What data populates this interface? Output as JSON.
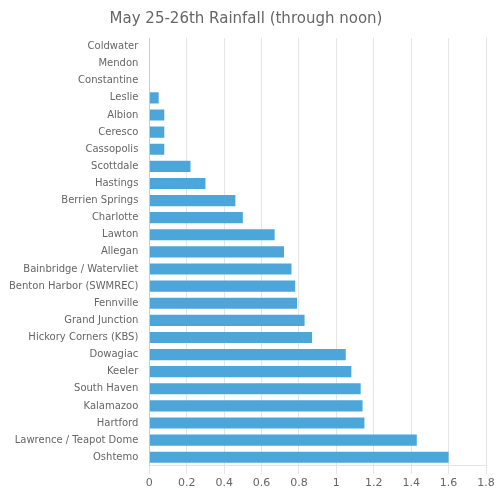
{
  "chart_data": {
    "type": "bar",
    "orientation": "horizontal",
    "title": "May 25-26th Rainfall (through noon)",
    "categories": [
      "Coldwater",
      "Mendon",
      "Constantine",
      "Leslie",
      "Albion",
      "Ceresco",
      "Cassopolis",
      "Scottdale",
      "Hastings",
      "Berrien Springs",
      "Charlotte",
      "Lawton",
      "Allegan",
      "Bainbridge / Watervliet",
      "Benton Harbor (SWMREC)",
      "Fennville",
      "Grand Junction",
      "Hickory Corners (KBS)",
      "Dowagiac",
      "Keeler",
      "South Haven",
      "Kalamazoo",
      "Hartford",
      "Lawrence / Teapot Dome",
      "Oshtemo"
    ],
    "values": [
      0.0,
      0.0,
      0.0,
      0.05,
      0.08,
      0.08,
      0.08,
      0.22,
      0.3,
      0.46,
      0.5,
      0.67,
      0.72,
      0.76,
      0.78,
      0.79,
      0.83,
      0.87,
      1.05,
      1.08,
      1.13,
      1.14,
      1.15,
      1.43,
      1.6
    ],
    "color": "#4da6d9",
    "xlim": [
      0,
      1.8
    ],
    "xticks": [
      0,
      0.2,
      0.4,
      0.6,
      0.8,
      1,
      1.2,
      1.4,
      1.6,
      1.8
    ],
    "grid": true
  }
}
